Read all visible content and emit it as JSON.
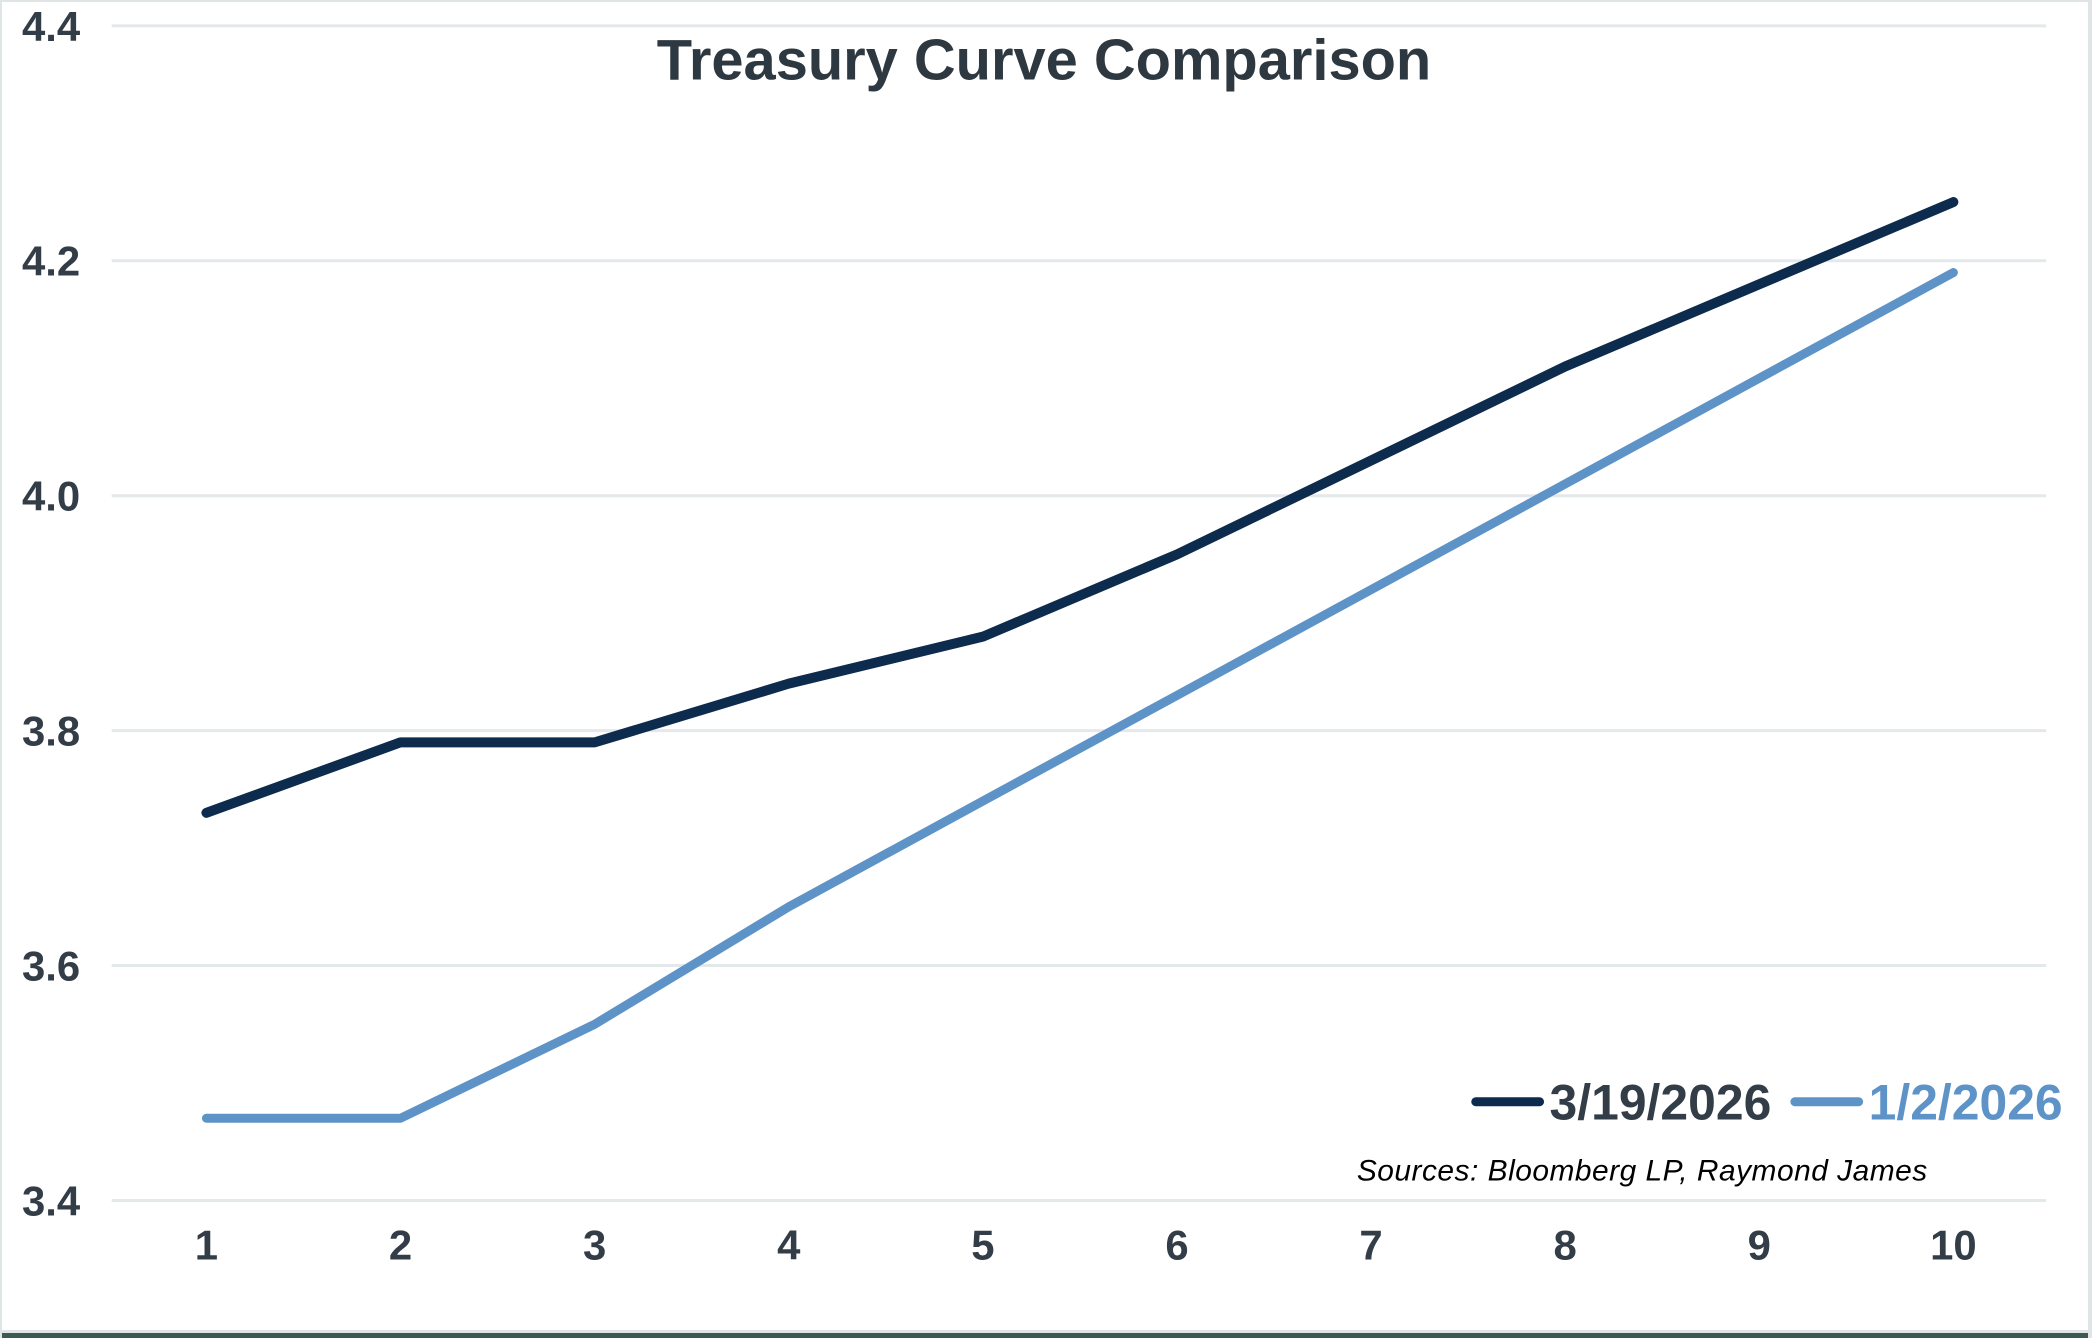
{
  "chart": {
    "title": "Treasury Curve Comparison",
    "sources": "Sources: Bloomberg LP, Raymond James"
  },
  "colors": {
    "title": "#2e3840",
    "axis_labels": "#333d47",
    "gridline": "#e3e8ea",
    "frame": "#dfe5e7",
    "bottom_edge": "#3d5a51",
    "sources": "#000000",
    "legend_label_dark": "#333d47"
  },
  "chart_data": {
    "type": "line",
    "title": "Treasury Curve Comparison",
    "xlabel": "",
    "ylabel": "",
    "x": [
      1,
      2,
      3,
      4,
      5,
      6,
      7,
      8,
      9,
      10
    ],
    "x_tick_labels": [
      "1",
      "2",
      "3",
      "4",
      "5",
      "6",
      "7",
      "8",
      "9",
      "10"
    ],
    "series": [
      {
        "name": "3/19/2026",
        "color": "#0d2b4d",
        "legend_text_color": "#333d47",
        "values": [
          3.73,
          3.79,
          3.79,
          3.84,
          3.88,
          3.95,
          4.03,
          4.11,
          4.18,
          4.25
        ]
      },
      {
        "name": "1/2/2026",
        "color": "#5e93c8",
        "legend_text_color": "#5e93c8",
        "values": [
          3.47,
          3.47,
          3.55,
          3.65,
          3.74,
          3.83,
          3.92,
          4.01,
          4.1,
          4.19
        ]
      }
    ],
    "ylim": [
      3.4,
      4.4
    ],
    "y_ticks": [
      "3.4",
      "3.6",
      "3.8",
      "4.0",
      "4.2",
      "4.4"
    ],
    "grid": "horizontal-only",
    "legend_position": "inside-bottom-right",
    "annotations": [
      "Sources: Bloomberg LP, Raymond James"
    ]
  }
}
